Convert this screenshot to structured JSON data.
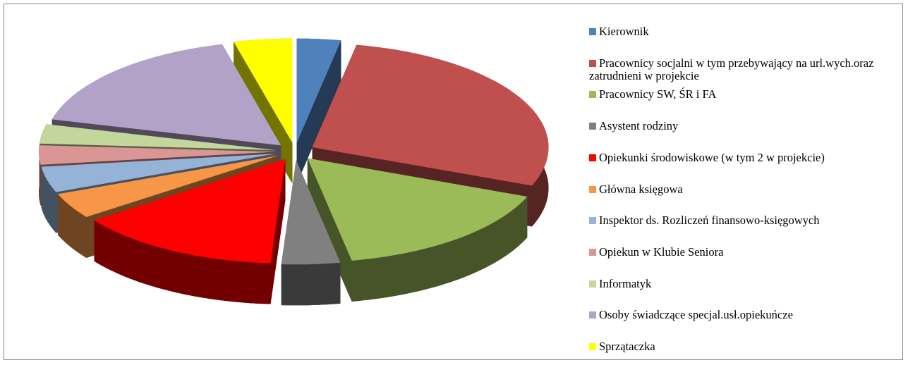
{
  "chart_data": {
    "type": "pie3d",
    "categories": [
      "Kierownik",
      "Pracownicy socjalni w tym przebywający na url.wych.oraz zatrudnieni w projekcie",
      "Pracownicy SW, ŚR i FA",
      "Asystent rodziny",
      "Opiekunki środowiskowe (w tym 2 w projekcie)",
      "Główna księgowa",
      "Inspektor ds. Rozliczeń finansowo-księgowych",
      "Opiekun w Klubie Seniora",
      "Informatyk",
      "Osoby świadczące specjal.usł.opiekuńcze",
      "Sprzątaczka"
    ],
    "values": [
      3,
      28,
      16,
      4,
      14,
      4,
      4,
      3,
      3,
      17,
      4
    ],
    "colors": [
      "#4f81bd",
      "#c0504d",
      "#9bbb59",
      "#808080",
      "#ff0000",
      "#f79646",
      "#95b3d7",
      "#d99694",
      "#c3d69b",
      "#b3a2c7",
      "#ffff00"
    ],
    "legend": "right"
  }
}
